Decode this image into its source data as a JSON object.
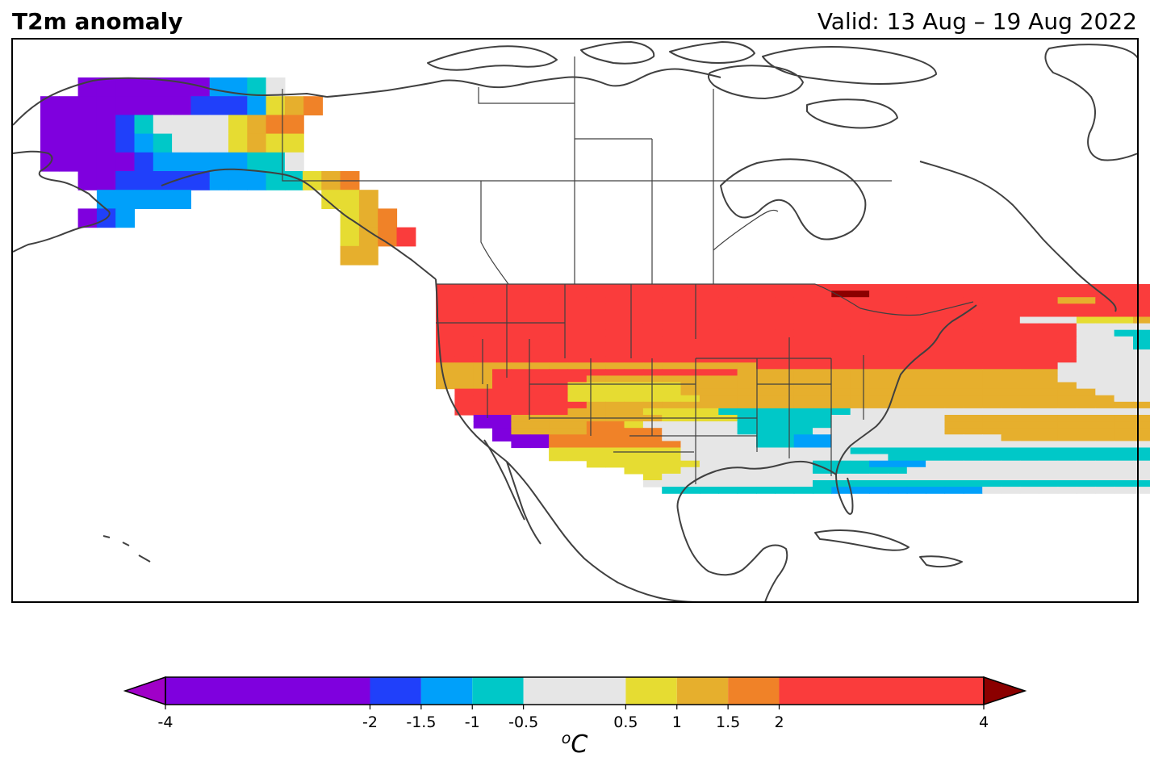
{
  "header": {
    "title": "T2m anomaly",
    "valid": "Valid: 13 Aug – 19 Aug 2022"
  },
  "colorbar": {
    "unit_superscript": "o",
    "unit_main": "C",
    "ticks": [
      "-4",
      "-2",
      "-1.5",
      "-1",
      "-0.5",
      "0.5",
      "1",
      "1.5",
      "2",
      "4"
    ],
    "bins": [
      {
        "from": -4,
        "to": -2,
        "color": "#7f00de"
      },
      {
        "from": -2,
        "to": -1.5,
        "color": "#2040fa"
      },
      {
        "from": -1.5,
        "to": -1,
        "color": "#00a0fa"
      },
      {
        "from": -1,
        "to": -0.5,
        "color": "#00c8c8"
      },
      {
        "from": -0.5,
        "to": 0.5,
        "color": "#e6e6e6"
      },
      {
        "from": 0.5,
        "to": 1,
        "color": "#e6dc32"
      },
      {
        "from": 1,
        "to": 1.5,
        "color": "#e6af2d"
      },
      {
        "from": 1.5,
        "to": 2,
        "color": "#f08228"
      },
      {
        "from": 2,
        "to": 4,
        "color": "#fa3c3c"
      }
    ],
    "under_color": "#a000c8",
    "over_color": "#8b0000"
  },
  "map_data": {
    "variable": "2 m temperature anomaly",
    "units": "degC",
    "palette": {
      "P": "#7f00de",
      "B": "#2040fa",
      "L": "#00a0fa",
      "C": "#00c8c8",
      "W": "#e6e6e6",
      "Y": "#e6dc32",
      "G": "#e6af2d",
      "O": "#f08228",
      "R": "#fa3c3c",
      "D": "#8b0000"
    },
    "regions": [
      {
        "name": "Alaska",
        "rows": [
          "..PPPPPPPLLCW..",
          "PPPPPPPPBBBLYGO",
          "PPPPBCWWWWYGOO.",
          "PPPPBLCWWWYGYY.",
          "PPPPPBLLLLLCCW.",
          "..PPBBBBBLLLCCW",
          "...LLLLL.......",
          "..PBL.........."
        ]
      },
      {
        "name": "Southeast Alaska",
        "rows": [
          "YGO...",
          ".YYG..",
          "..YGO.",
          "..YGOR",
          "..GG.."
        ]
      },
      {
        "name": "CONUS",
        "rows": [
          "RRRRRRRRRRRRRRRRRRRRRRRRRRRRRRRRRRRRRRRRRRR",
          "RRRRRRRRRRRRRRRRRRRRRDDRRRRRRRRRRRRRRRRRRRR",
          "RRRRRRRRRRRRRRRRRRRRRRRRRRRRRRRRRGGRRRRRGOR",
          "RRRRRRRRRRRRRRRRRRRRRRRRRRRRRRRRRRRRRRRGGYY",
          "RRRRRRRRRRRRRRRRRRRRRRRRRRRRRRRRRRRRRRWWWYW",
          "RRRRRRRRRRRRRRRRRRRRRRRRRRRRRRRWWWYYYGGWWWG",
          "RRRRRRRRRRRRRRRRRRRRRRRRRRRRRRRRRRWWWWCCCCW",
          "RRRRRRRRRRRRRRRRRRRRRRRRRRRRRRRRRRWWCCCCCLL",
          "RRRRRRRRRRRRRRRRRRRRRRRRRRRRRRRRRRWWWCCCCCW",
          "RRRRRRRRRRRRRRRRRRRRRRRRRRRRRRRRRRWWWCCCWCW",
          "RRRRRRRRRRRRRRRRRRRRRRRRRRRRRRRRRRWWWWCCWWW",
          "RRRRRRRRRRRRRRRRRRRRRRRRRRRRRRRRRRWWWWCCCCC",
          "GGGGGGGGGGGGGGGGGRRRRRRRRRRRRRRRRWWWWWWWWWW",
          "GGGRRRRRRRRRRRRRGGGGGGGGGGGGGGGGGWWWWWWWWWW",
          "GGGRRRRRGGGGGGGGGGGGGGGGGGGGGGGGGWWWWWWWWWW",
          "GGGRRRRYYYYYYGGGGGGGGGGGGGGGGGGGGGWWWWWWWWW",
          ".RRRRRRYYYYYYGGGGGGGGGGGGGGGGGGGGGGWWWWWWWW",
          ".RRRRRRYYYYYYYGGGGGGGGGGGGGGGGGGGGGGWWWWWWW",
          ".RRRRRRRGGGGGGGGGGGGGGGGGGGGGGGGGGGGGGWWWWW",
          ".RRRRRRGGGGYYYYCCCCCCCWWWWWWWWWWWWWWWWWWWWW",
          "..PPGGGGGGGGYYYYCCCCCWWWWWWGGGGGGGGGGGGGGGG",
          "..PPGGGGOOYWWWWWCCCCCWWWWWWGGGGGGGGGGGGGGGG",
          "...PGGGGOOOOWWWWCCCCWWWWWWWGGGGGGGGGGGGGGGG",
          "...PPPOOOOOOWWWWWCCLLWWWWWWWWWGGGGGGGGGGGGG",
          "....PPOOOOOOOWWWWCCLLWWWWWWWWWWWWWWWWWWWWWW",
          "......YYYYYYYWWWWWWWWWCCCCCCCCCCCCCCCCCCCCC",
          "......YYYYYYYWWWWWWWWWWWCCCCCCCCCCCCCCCCCCC",
          "........YYYYYYWWWWWWCCCLLLWWWWWWWWWWWWWWWWW",
          "..........YYYWWWWWWWCCCCCWWWWWWWWWWWWWWWWWW",
          "...........YWWWWWWWWWWWWWWWWWWWWWWWWWWWWWWW",
          "...........WWWWWWWWWCCCCCCCCCCCCCCCCCCCCCCW",
          "............CCCCCCCCCLLLLLLLLWWWWWWWWWWWWWW",
          "..........................................."
        ]
      }
    ]
  }
}
